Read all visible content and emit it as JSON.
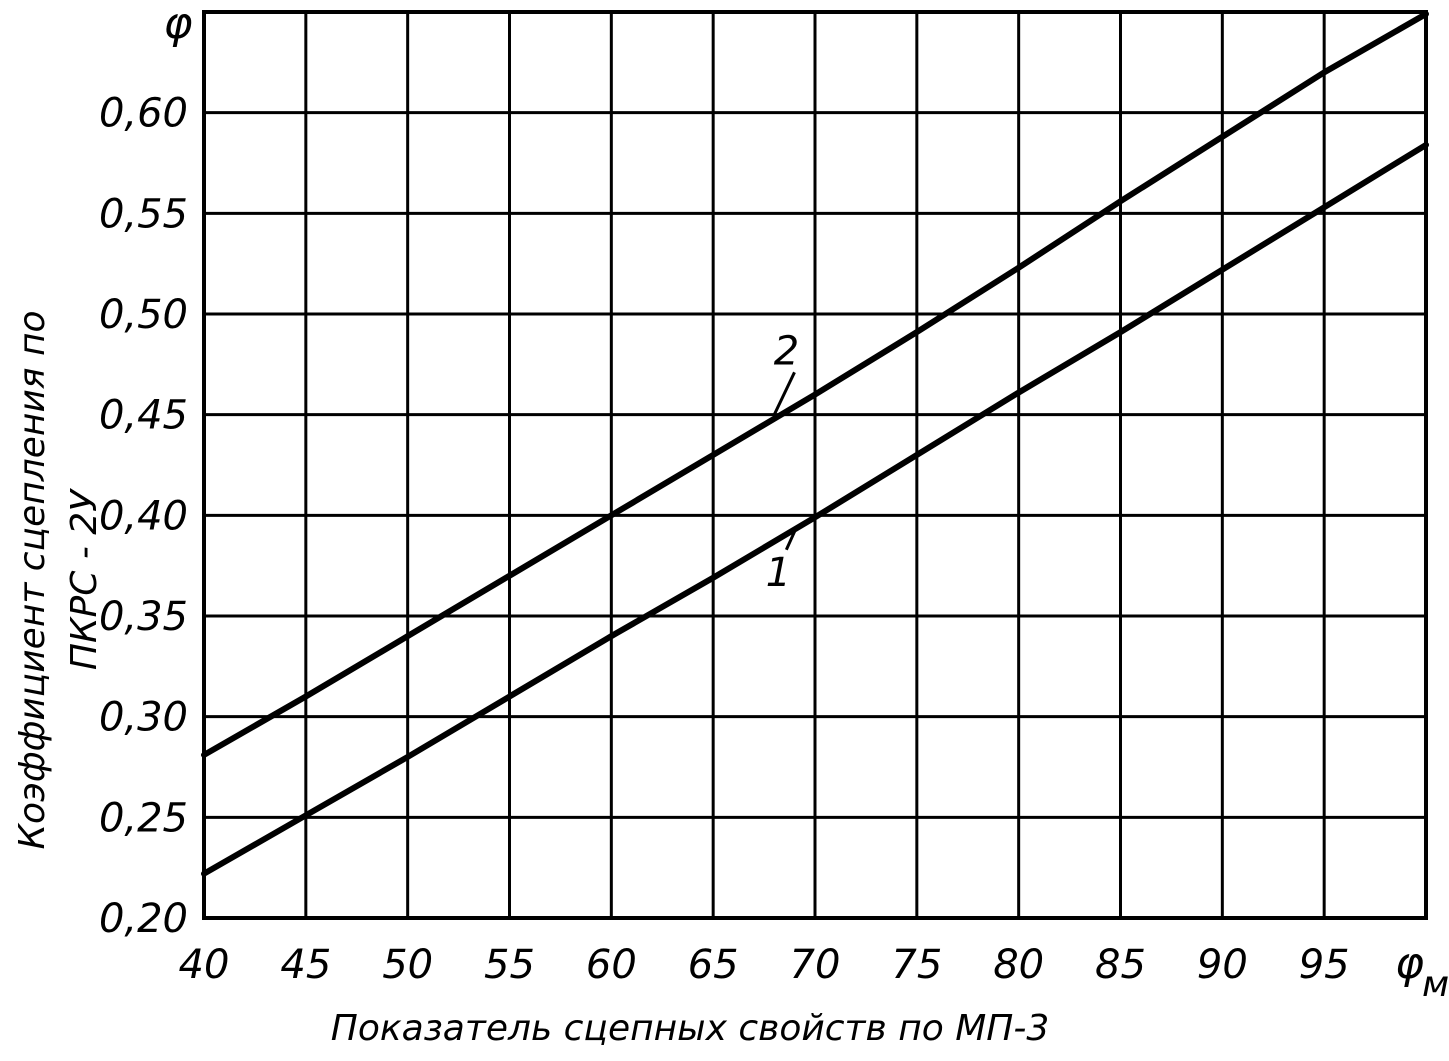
{
  "chart_data": {
    "type": "line",
    "title": "",
    "xlabel": "Показатель сцепных свойств по МП-3",
    "ylabel_lines": [
      "Коэффициент сцепления по",
      "ПКРС - 2У"
    ],
    "x_symbol": "φ",
    "x_symbol_sub": "м",
    "y_symbol": "φ",
    "xlim": [
      40,
      100
    ],
    "ylim": [
      0.2,
      0.65
    ],
    "x_ticks": [
      40,
      45,
      50,
      55,
      60,
      65,
      70,
      75,
      80,
      85,
      90,
      95
    ],
    "x_tick_labels": [
      "40",
      "45",
      "50",
      "55",
      "60",
      "65",
      "70",
      "75",
      "80",
      "85",
      "90",
      "95"
    ],
    "y_ticks": [
      0.2,
      0.25,
      0.3,
      0.35,
      0.4,
      0.45,
      0.5,
      0.55,
      0.6
    ],
    "y_tick_labels": [
      "0,20",
      "0,25",
      "0,30",
      "0,35",
      "0,40",
      "0,45",
      "0,50",
      "0,55",
      "0,60"
    ],
    "grid": true,
    "series": [
      {
        "name": "1",
        "x": [
          40,
          45,
          50,
          55,
          60,
          65,
          70,
          75,
          80,
          85,
          90,
          95,
          100
        ],
        "y": [
          0.222,
          0.251,
          0.28,
          0.31,
          0.34,
          0.369,
          0.399,
          0.43,
          0.461,
          0.491,
          0.522,
          0.553,
          0.584
        ],
        "label_x": 68.2,
        "label_y": 0.365,
        "leader_to": [
          69.0,
          0.392
        ]
      },
      {
        "name": "2",
        "x": [
          40,
          45,
          50,
          55,
          60,
          65,
          70,
          75,
          80,
          85,
          90,
          95,
          100
        ],
        "y": [
          0.281,
          0.31,
          0.34,
          0.37,
          0.4,
          0.43,
          0.46,
          0.491,
          0.523,
          0.556,
          0.588,
          0.62,
          0.649
        ],
        "label_x": 68.6,
        "label_y": 0.475,
        "leader_to": [
          68.0,
          0.45
        ]
      }
    ]
  }
}
